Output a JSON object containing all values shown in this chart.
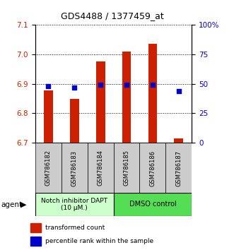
{
  "title": "GDS4488 / 1377459_at",
  "samples": [
    "GSM786182",
    "GSM786183",
    "GSM786184",
    "GSM786185",
    "GSM786186",
    "GSM786187"
  ],
  "bar_values": [
    6.878,
    6.848,
    6.975,
    7.01,
    7.035,
    6.715
  ],
  "percentile_values": [
    48,
    47,
    49,
    49,
    49,
    44
  ],
  "ylim_left": [
    6.7,
    7.1
  ],
  "ylim_right": [
    0,
    100
  ],
  "yticks_left": [
    6.7,
    6.8,
    6.9,
    7.0,
    7.1
  ],
  "yticks_right": [
    0,
    25,
    50,
    75,
    100
  ],
  "ytick_labels_right": [
    "0",
    "25",
    "50",
    "75",
    "100%"
  ],
  "bar_color": "#cc2000",
  "blue_color": "#0000cc",
  "bar_width": 0.35,
  "base_value": 6.7,
  "group1_label": "Notch inhibitor DAPT\n(10 μM.)",
  "group2_label": "DMSO control",
  "group1_color": "#ccffcc",
  "group2_color": "#55dd55",
  "legend_red_label": "transformed count",
  "legend_blue_label": "percentile rank within the sample",
  "agent_label": "agent"
}
